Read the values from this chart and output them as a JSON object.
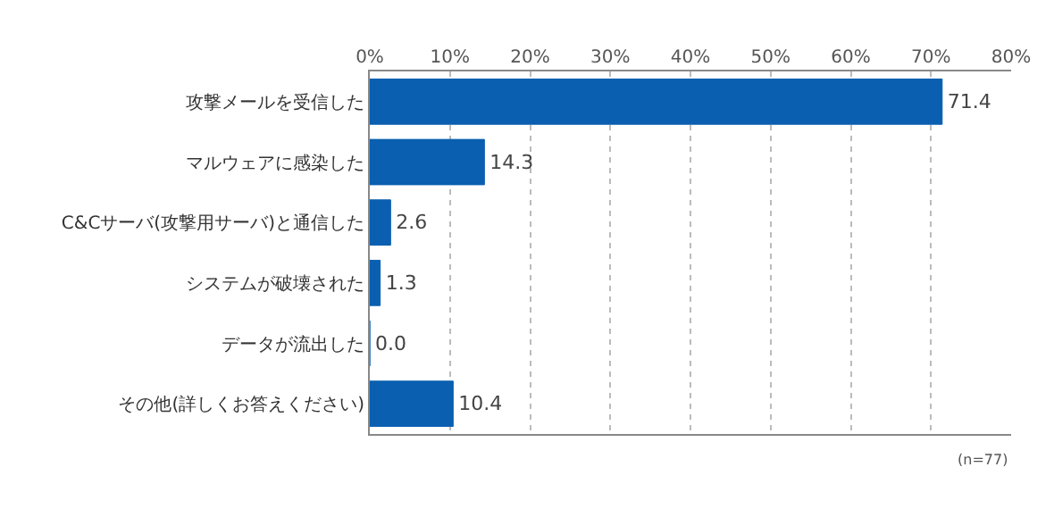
{
  "chart_data": {
    "type": "bar",
    "orientation": "horizontal",
    "categories": [
      "攻撃メールを受信した",
      "マルウェアに感染した",
      "C&Cサーバ(攻撃用サーバ)と通信した",
      "システムが破壊された",
      "データが流出した",
      "その他(詳しくお答えください)"
    ],
    "values": [
      71.4,
      14.3,
      2.6,
      1.3,
      0.0,
      10.4
    ],
    "value_labels": [
      "71.4",
      "14.3",
      "2.6",
      "1.3",
      "0.0",
      "10.4"
    ],
    "color": "#0a5fb0",
    "xlim": [
      0,
      80
    ],
    "xticks": [
      {
        "value": 0,
        "label": "0%"
      },
      {
        "value": 10,
        "label": "10%"
      },
      {
        "value": 20,
        "label": "20%"
      },
      {
        "value": 30,
        "label": "30%"
      },
      {
        "value": 40,
        "label": "40%"
      },
      {
        "value": 50,
        "label": "50%"
      },
      {
        "value": 60,
        "label": "60%"
      },
      {
        "value": 70,
        "label": "70%"
      },
      {
        "value": 80,
        "label": "80%"
      }
    ],
    "grid": "x",
    "legend": false,
    "annotations": [
      "(n=77)"
    ]
  }
}
